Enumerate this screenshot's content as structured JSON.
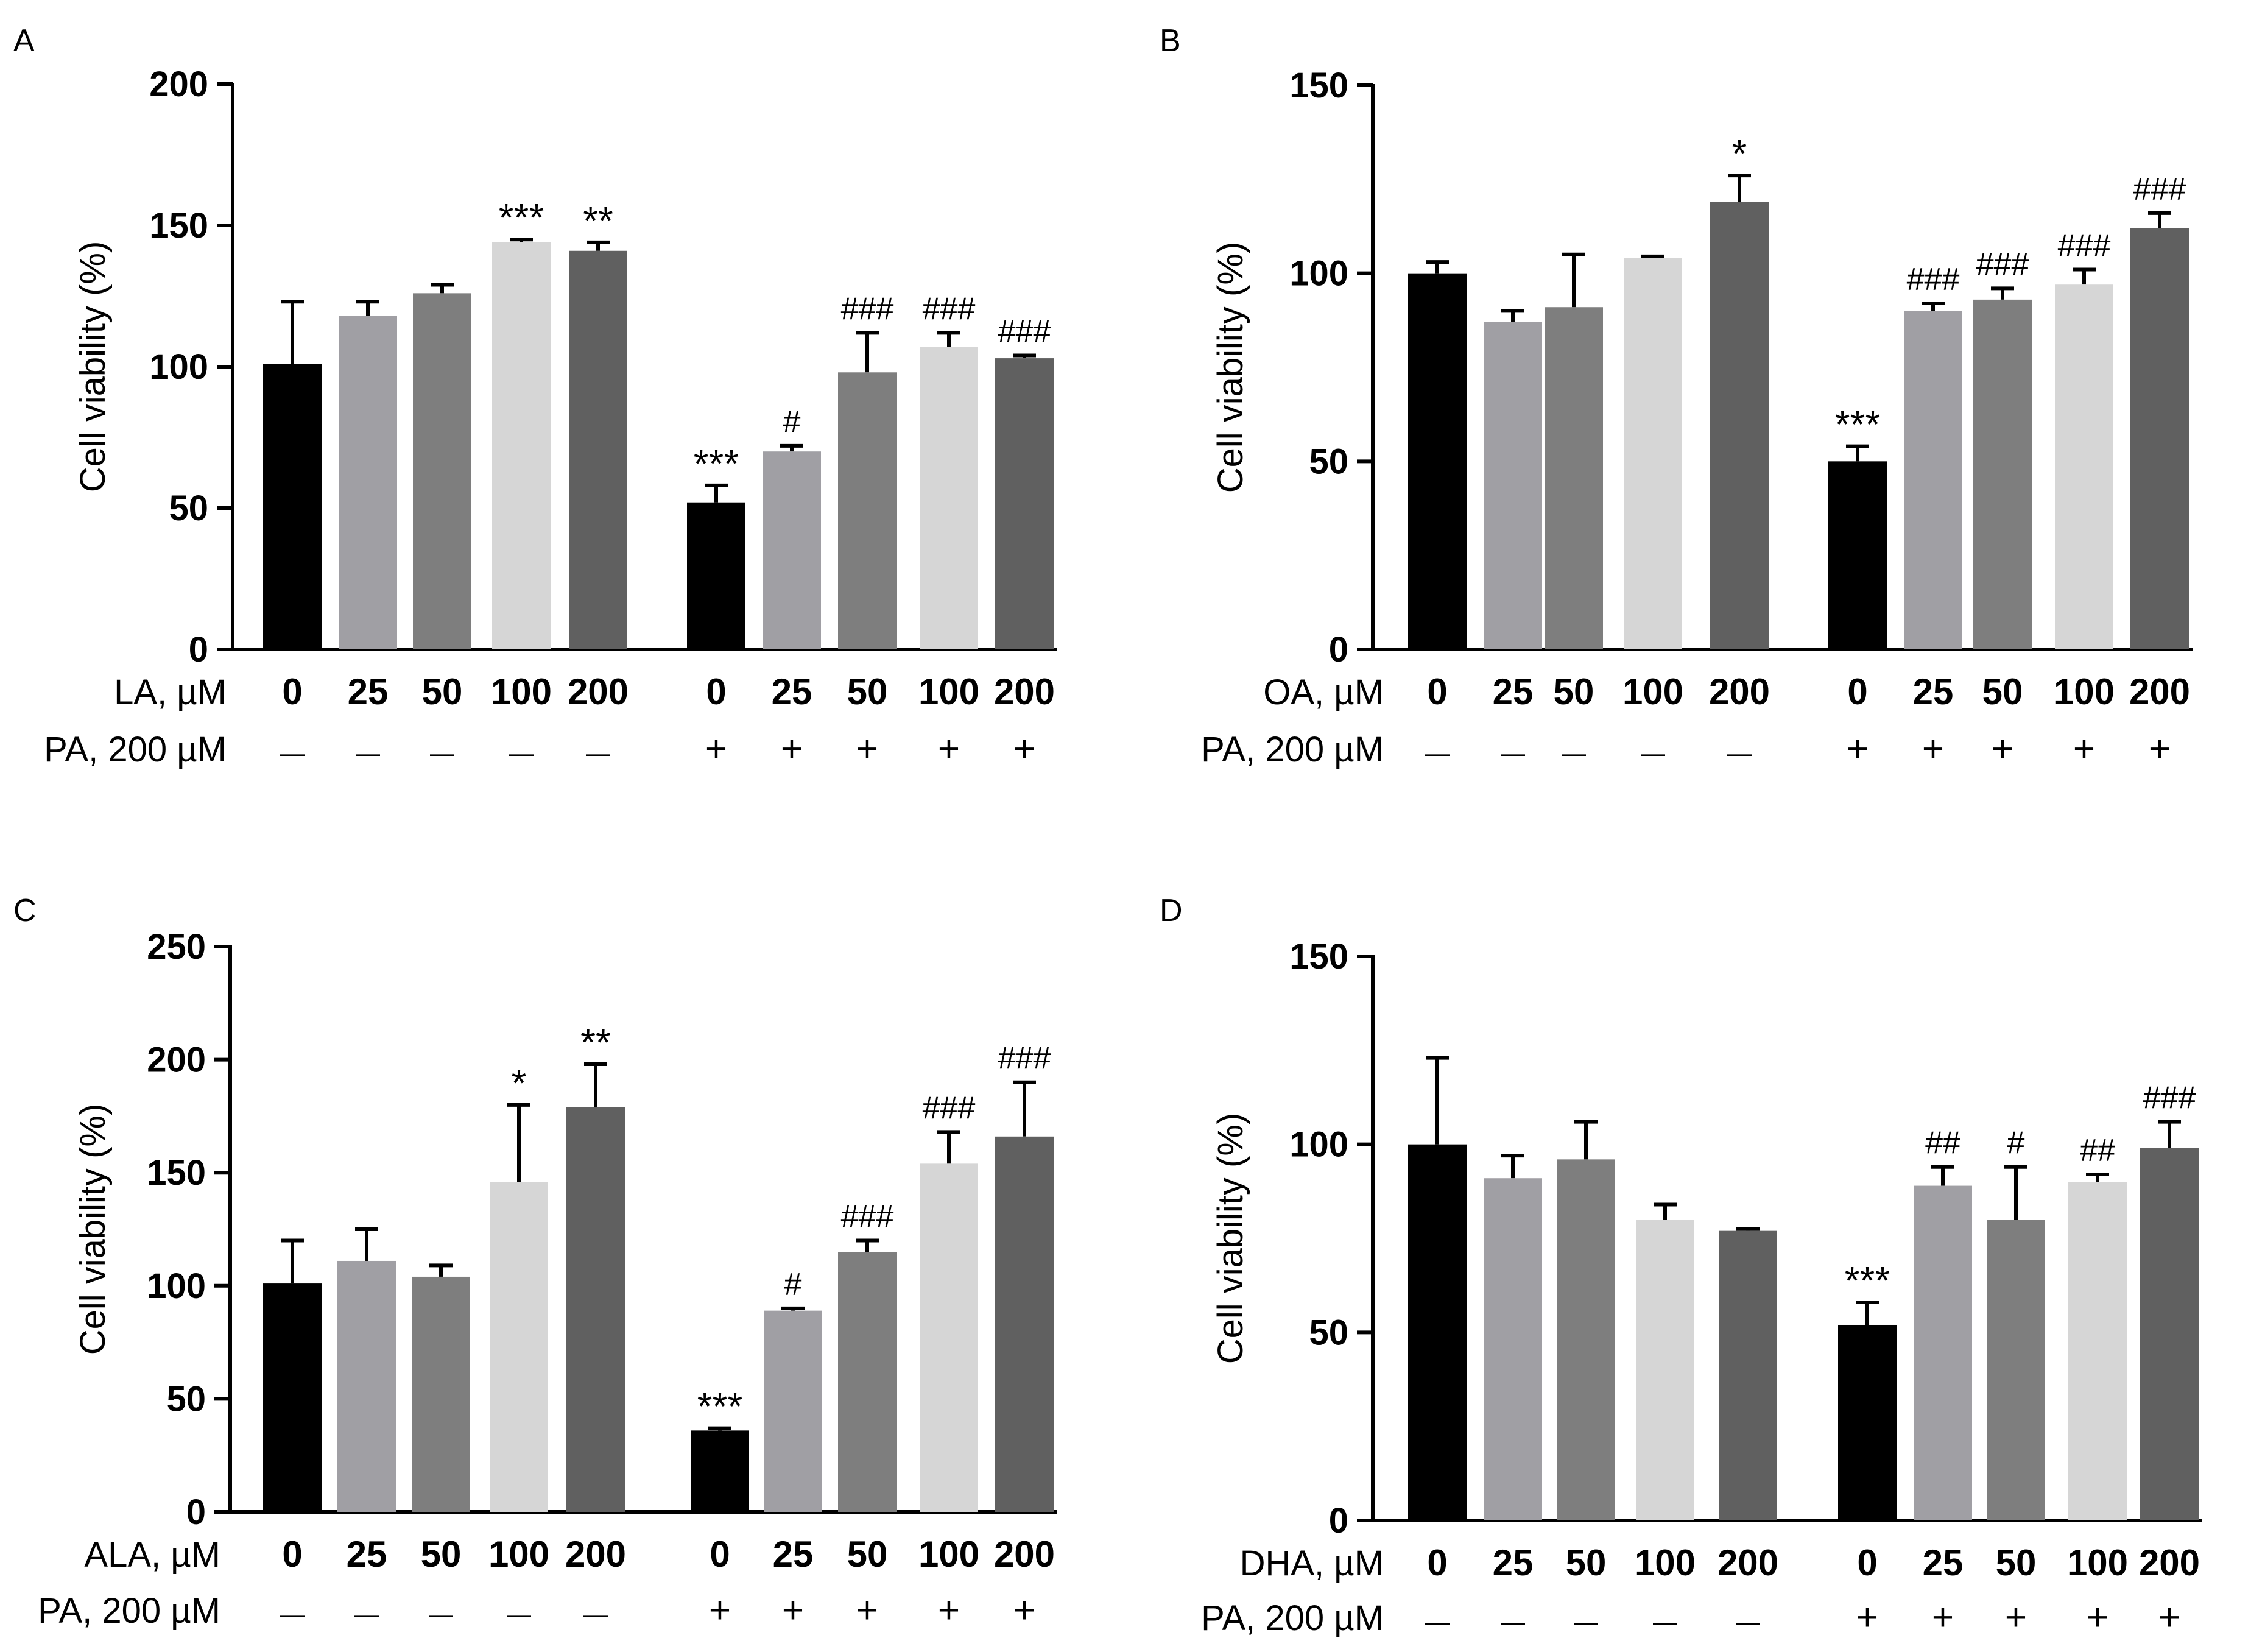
{
  "chart_data": [
    {
      "type": "bar",
      "panel": "A",
      "ylabel": "Cell viability (%)",
      "ylim": [
        0,
        200
      ],
      "yticks": [
        0,
        50,
        100,
        150,
        200
      ],
      "row1_label": "LA, µM",
      "row2_label": "PA, 200 µM",
      "bars": [
        {
          "conc": "0",
          "pa": "—",
          "value": 101,
          "err": 22,
          "sig": ""
        },
        {
          "conc": "25",
          "pa": "—",
          "value": 118,
          "err": 5,
          "sig": ""
        },
        {
          "conc": "50",
          "pa": "—",
          "value": 126,
          "err": 3,
          "sig": ""
        },
        {
          "conc": "100",
          "pa": "—",
          "value": 144,
          "err": 1,
          "sig": "***"
        },
        {
          "conc": "200",
          "pa": "—",
          "value": 141,
          "err": 3,
          "sig": "**"
        },
        {
          "conc": "0",
          "pa": "+",
          "value": 52,
          "err": 6,
          "sig": "***"
        },
        {
          "conc": "25",
          "pa": "+",
          "value": 70,
          "err": 2,
          "sig": "#"
        },
        {
          "conc": "50",
          "pa": "+",
          "value": 98,
          "err": 14,
          "sig": "###"
        },
        {
          "conc": "100",
          "pa": "+",
          "value": 107,
          "err": 5,
          "sig": "###"
        },
        {
          "conc": "200",
          "pa": "+",
          "value": 103,
          "err": 1,
          "sig": "###"
        }
      ]
    },
    {
      "type": "bar",
      "panel": "B",
      "ylabel": "Cell viability (%)",
      "ylim": [
        0,
        150
      ],
      "yticks": [
        0,
        50,
        100,
        150
      ],
      "row1_label": "OA, µM",
      "row2_label": "PA, 200 µM",
      "bars": [
        {
          "conc": "0",
          "pa": "—",
          "value": 100,
          "err": 3,
          "sig": ""
        },
        {
          "conc": "25",
          "pa": "—",
          "value": 87,
          "err": 3,
          "sig": ""
        },
        {
          "conc": "50",
          "pa": "—",
          "value": 91,
          "err": 14,
          "sig": ""
        },
        {
          "conc": "100",
          "pa": "—",
          "value": 104,
          "err": 0.5,
          "sig": ""
        },
        {
          "conc": "200",
          "pa": "—",
          "value": 119,
          "err": 7,
          "sig": "*"
        },
        {
          "conc": "0",
          "pa": "+",
          "value": 50,
          "err": 4,
          "sig": "***"
        },
        {
          "conc": "25",
          "pa": "+",
          "value": 90,
          "err": 2,
          "sig": "###"
        },
        {
          "conc": "50",
          "pa": "+",
          "value": 93,
          "err": 3,
          "sig": "###"
        },
        {
          "conc": "100",
          "pa": "+",
          "value": 97,
          "err": 4,
          "sig": "###"
        },
        {
          "conc": "200",
          "pa": "+",
          "value": 112,
          "err": 4,
          "sig": "###"
        }
      ]
    },
    {
      "type": "bar",
      "panel": "C",
      "ylabel": "Cell viability (%)",
      "ylim": [
        0,
        250
      ],
      "yticks": [
        0,
        50,
        100,
        150,
        200,
        250
      ],
      "row1_label": "ALA, µM",
      "row2_label": "PA, 200 µM",
      "bars": [
        {
          "conc": "0",
          "pa": "—",
          "value": 101,
          "err": 19,
          "sig": ""
        },
        {
          "conc": "25",
          "pa": "—",
          "value": 111,
          "err": 14,
          "sig": ""
        },
        {
          "conc": "50",
          "pa": "—",
          "value": 104,
          "err": 5,
          "sig": ""
        },
        {
          "conc": "100",
          "pa": "—",
          "value": 146,
          "err": 34,
          "sig": "*"
        },
        {
          "conc": "200",
          "pa": "—",
          "value": 179,
          "err": 19,
          "sig": "**"
        },
        {
          "conc": "0",
          "pa": "+",
          "value": 36,
          "err": 1,
          "sig": "***"
        },
        {
          "conc": "25",
          "pa": "+",
          "value": 89,
          "err": 1,
          "sig": "#"
        },
        {
          "conc": "50",
          "pa": "+",
          "value": 115,
          "err": 5,
          "sig": "###"
        },
        {
          "conc": "100",
          "pa": "+",
          "value": 154,
          "err": 14,
          "sig": "###"
        },
        {
          "conc": "200",
          "pa": "+",
          "value": 166,
          "err": 24,
          "sig": "###"
        }
      ]
    },
    {
      "type": "bar",
      "panel": "D",
      "ylabel": "Cell viability (%)",
      "ylim": [
        0,
        150
      ],
      "yticks": [
        0,
        50,
        100,
        150
      ],
      "row1_label": "DHA, µM",
      "row2_label": "PA, 200 µM",
      "bars": [
        {
          "conc": "0",
          "pa": "—",
          "value": 100,
          "err": 23,
          "sig": ""
        },
        {
          "conc": "25",
          "pa": "—",
          "value": 91,
          "err": 6,
          "sig": ""
        },
        {
          "conc": "50",
          "pa": "—",
          "value": 96,
          "err": 10,
          "sig": ""
        },
        {
          "conc": "100",
          "pa": "—",
          "value": 80,
          "err": 4,
          "sig": ""
        },
        {
          "conc": "200",
          "pa": "—",
          "value": 77,
          "err": 0.5,
          "sig": ""
        },
        {
          "conc": "0",
          "pa": "+",
          "value": 52,
          "err": 6,
          "sig": "***"
        },
        {
          "conc": "25",
          "pa": "+",
          "value": 89,
          "err": 5,
          "sig": "##"
        },
        {
          "conc": "50",
          "pa": "+",
          "value": 80,
          "err": 14,
          "sig": "#"
        },
        {
          "conc": "100",
          "pa": "+",
          "value": 90,
          "err": 2,
          "sig": "##"
        },
        {
          "conc": "200",
          "pa": "+",
          "value": 99,
          "err": 7,
          "sig": "###"
        }
      ]
    }
  ],
  "colors": {
    "bar_fills": [
      "#000000",
      "#a09fa4",
      "#7e7e7e",
      "#d6d6d6",
      "#606060"
    ],
    "axis": "#000000",
    "text": "#000000"
  }
}
